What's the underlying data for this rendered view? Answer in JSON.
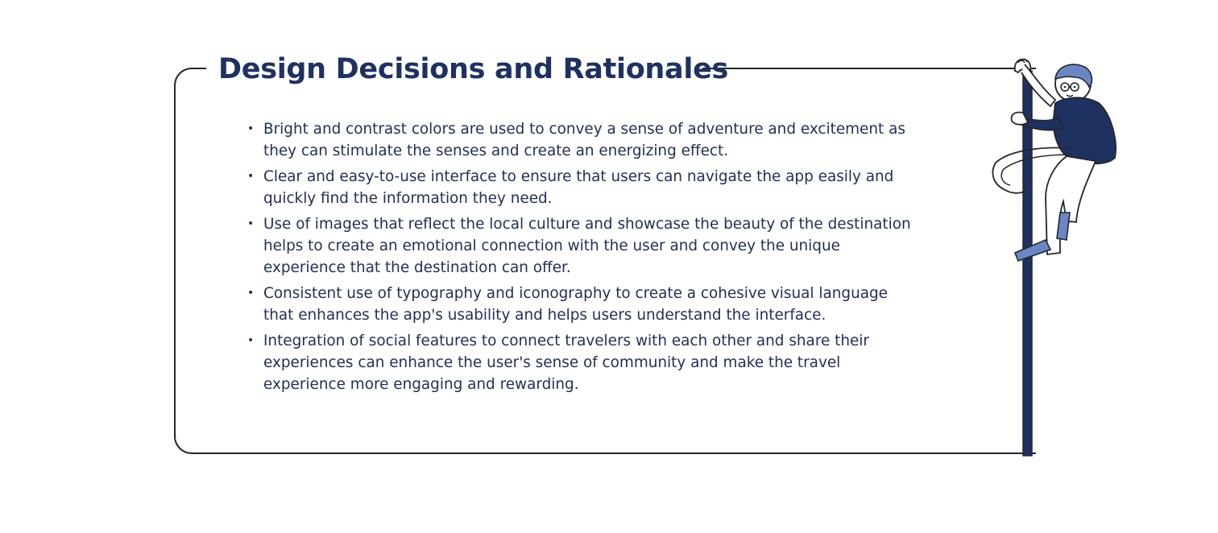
{
  "section": {
    "title": "Design Decisions and Rationales",
    "items": [
      "Bright and contrast colors are used to convey a sense of adventure and excitement as they can stimulate the senses and create an energizing effect.",
      "Clear and easy-to-use interface to ensure that users can navigate the app easily and quickly find the information they need.",
      "Use of images that reflect the local culture and showcase the beauty of the destination helps to create an emotional connection with the user and convey the unique experience that the destination can offer.",
      "Consistent use of typography and iconography to create a cohesive visual language that enhances the app's usability and helps users understand the interface.",
      "Integration of social features to connect travelers with each other and share their experiences can enhance the user's sense of community and make the travel experience more engaging and rewarding."
    ]
  },
  "colors": {
    "heading": "#1f3160",
    "body_text": "#242f55",
    "frame_line": "#22262e",
    "pole": "#1f3160",
    "accent": "#6a87c4"
  },
  "illustration": {
    "icon": "person-climbing-pole-illustration"
  }
}
